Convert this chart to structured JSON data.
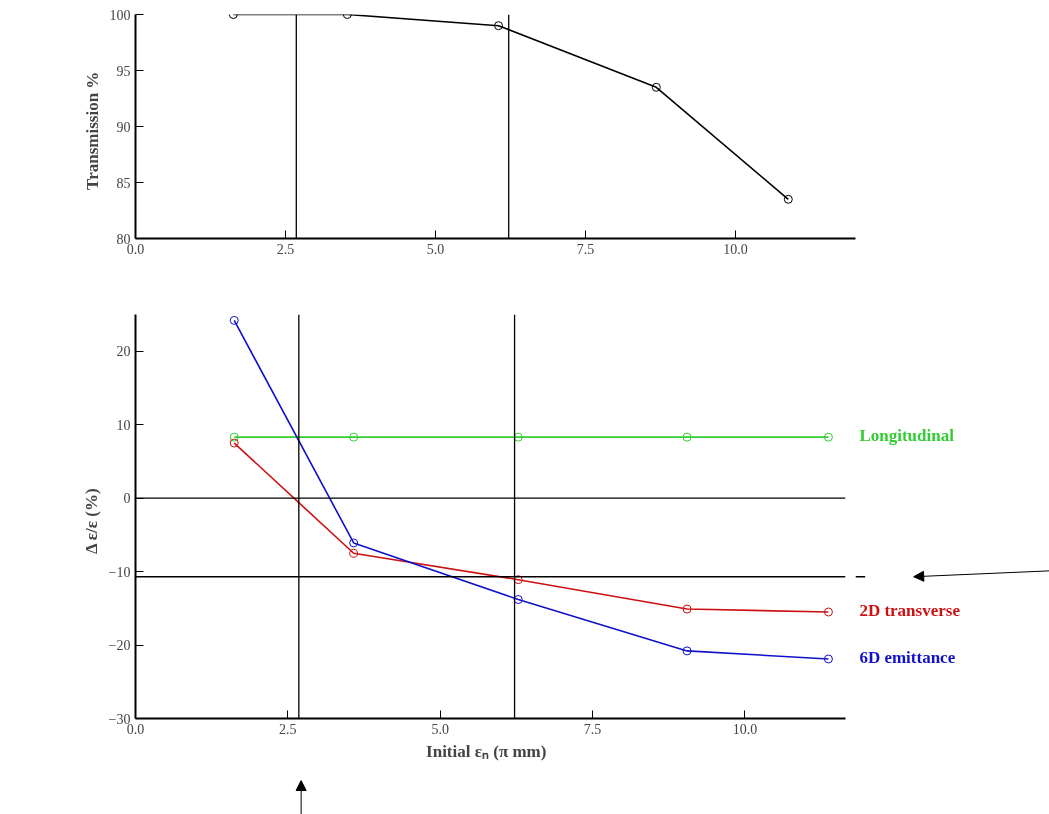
{
  "chart_data": [
    {
      "type": "line",
      "ylabel": "Transmission   %",
      "marker": "circle",
      "line_style": "solid",
      "grid": false,
      "x": [
        1.63,
        3.53,
        6.05,
        8.68,
        10.88
      ],
      "series": [
        {
          "color": "#000000",
          "values": [
            100,
            100,
            99.0,
            93.5,
            83.5
          ]
        }
      ],
      "xlim": [
        0,
        12
      ],
      "xticks": [
        {
          "value": 0,
          "label": "0.0"
        },
        {
          "value": 2.5,
          "label": "2.5"
        },
        {
          "value": 5,
          "label": "5.0"
        },
        {
          "value": 7.5,
          "label": "7.5"
        },
        {
          "value": 10,
          "label": "10.0"
        }
      ],
      "ylim": [
        80,
        100
      ],
      "yticks": [
        80,
        85,
        90,
        95,
        100
      ],
      "ref_lines": [
        {
          "axis": "x",
          "value": 2.68,
          "color": "#000000"
        },
        {
          "axis": "x",
          "value": 6.22,
          "color": "#000000"
        }
      ]
    },
    {
      "type": "line",
      "xlabel": "Initial εₙ   (π mm)",
      "ylabel": "Δ ε/ε   (%)",
      "marker": "circle",
      "line_style": "solid",
      "grid": false,
      "x": [
        1.62,
        3.58,
        6.28,
        9.05,
        11.37
      ],
      "series": [
        {
          "name": "Longitudinal",
          "color": "#33cc33",
          "values": [
            8.3,
            8.3,
            8.3,
            8.3,
            8.3
          ]
        },
        {
          "name": "2D transverse",
          "color": "#cc1111",
          "values": [
            7.5,
            -7.5,
            -11.1,
            -15.1,
            -15.5
          ]
        },
        {
          "name": "6D emittance",
          "color": "#1111cc",
          "values": [
            24.2,
            -6.1,
            -13.8,
            -20.8,
            -21.9
          ]
        }
      ],
      "xlim": [
        0,
        11.65
      ],
      "xticks": [
        {
          "value": 0,
          "label": "0.0"
        },
        {
          "value": 2.5,
          "label": "2.5"
        },
        {
          "value": 5,
          "label": "5.0"
        },
        {
          "value": 7.5,
          "label": "7.5"
        },
        {
          "value": 10,
          "label": "10.0"
        }
      ],
      "ylim": [
        -30,
        25
      ],
      "yticks": [
        -30,
        -20,
        -10,
        0,
        10,
        20
      ],
      "ref_lines": [
        {
          "axis": "x",
          "value": 2.68,
          "color": "#000000"
        },
        {
          "axis": "x",
          "value": 6.22,
          "color": "#000000"
        },
        {
          "axis": "y",
          "value": 0,
          "color": "#000000"
        },
        {
          "axis": "y",
          "value": -10.7,
          "color": "#000000"
        }
      ]
    }
  ]
}
